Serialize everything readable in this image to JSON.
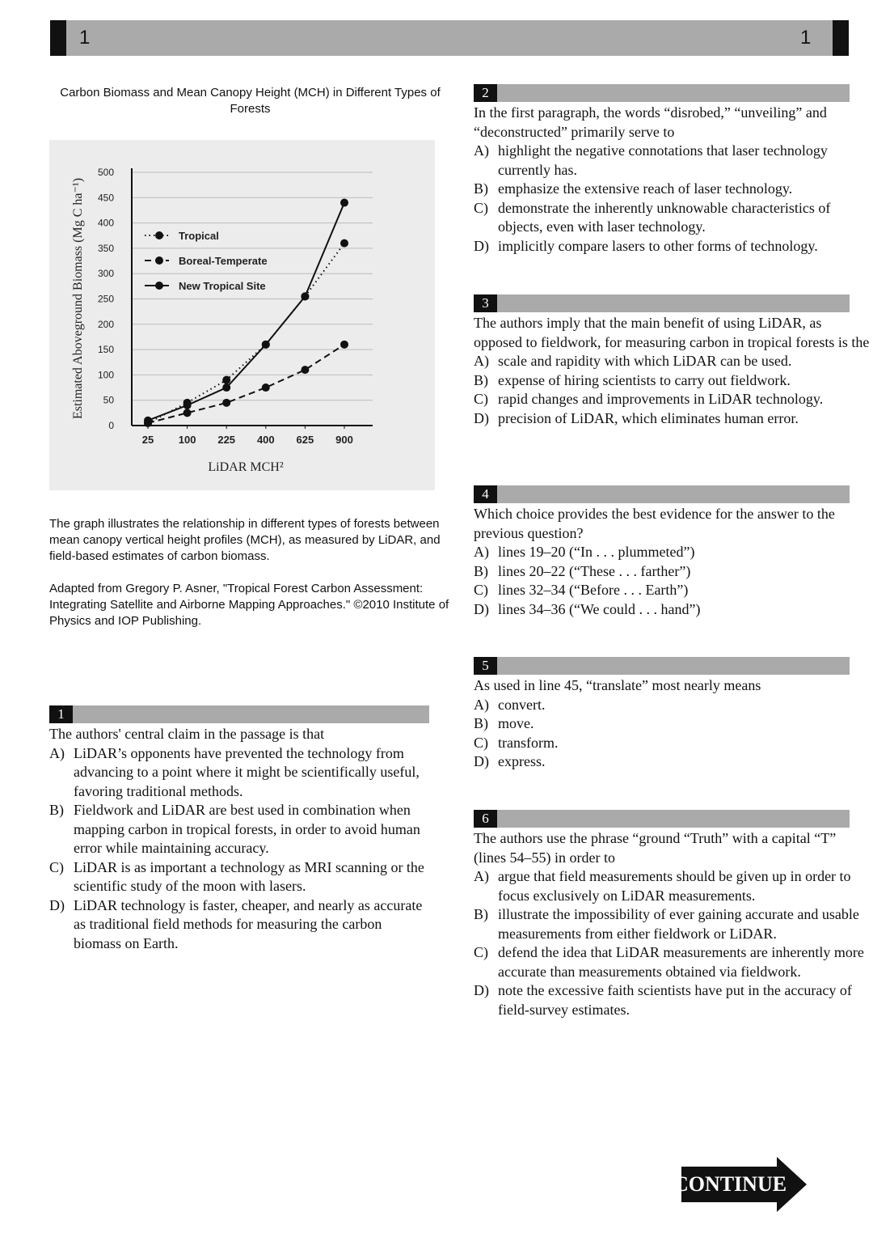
{
  "header": {
    "page_left": "1",
    "page_right": "1"
  },
  "figure": {
    "title": "Carbon Biomass and Mean Canopy Height (MCH) in Different Types of Forests",
    "description": "The graph illustrates the relationship in different types of forests between mean canopy vertical height profiles (MCH), as measured by LiDAR, and field-based estimates of carbon biomass.",
    "source": "Adapted from Gregory P. Asner, \"Tropical Forest Carbon Assessment: Integrating Satellite and Airborne Mapping Approaches.\" ©2010 Institute of Physics and IOP Publishing."
  },
  "chart_data": {
    "type": "line",
    "title": "Carbon Biomass and Mean Canopy Height (MCH) in Different Types of Forests",
    "xlabel": "LiDAR MCH²",
    "ylabel": "Estimated Aboveground Biomass (Mg C ha⁻¹)",
    "categories": [
      "25",
      "100",
      "225",
      "400",
      "625",
      "900"
    ],
    "ylim": [
      0,
      500
    ],
    "yticks": [
      "0",
      "50",
      "100",
      "150",
      "200",
      "250",
      "300",
      "350",
      "400",
      "450",
      "500"
    ],
    "grid": true,
    "legend_position": "top-left",
    "series": [
      {
        "name": "Tropical",
        "style": "dotted",
        "values": [
          5,
          45,
          90,
          160,
          255,
          360
        ]
      },
      {
        "name": "Boreal-Temperate",
        "style": "dashed",
        "values": [
          5,
          25,
          45,
          75,
          110,
          160
        ]
      },
      {
        "name": "New Tropical Site",
        "style": "solid",
        "values": [
          10,
          40,
          75,
          160,
          255,
          440
        ]
      }
    ]
  },
  "questions": [
    {
      "number": "1",
      "stem": "The authors' central claim in the passage is that",
      "options": [
        {
          "letter": "A)",
          "text": "LiDAR’s opponents have prevented the technology from advancing to a point where it might be scientifically useful, favoring traditional methods."
        },
        {
          "letter": "B)",
          "text": "Fieldwork and LiDAR are best used in combination when mapping carbon in tropical forests, in order to avoid human error while maintaining accuracy."
        },
        {
          "letter": "C)",
          "text": "LiDAR is as important a technology as MRI scanning or the scientific study of the moon with lasers."
        },
        {
          "letter": "D)",
          "text": "LiDAR technology is faster, cheaper, and nearly as accurate as traditional field methods for measuring the carbon biomass on Earth."
        }
      ]
    },
    {
      "number": "2",
      "stem": "In the first paragraph, the words “disrobed,” “unveiling” and “deconstructed” primarily serve to",
      "options": [
        {
          "letter": "A)",
          "text": "highlight the negative connotations that laser technology currently has."
        },
        {
          "letter": "B)",
          "text": "emphasize the extensive reach of laser technology."
        },
        {
          "letter": "C)",
          "text": "demonstrate the inherently unknowable characteristics of objects, even with laser technology."
        },
        {
          "letter": "D)",
          "text": "implicitly compare lasers to other forms of technology."
        }
      ]
    },
    {
      "number": "3",
      "stem": "The authors imply that the main benefit of using LiDAR, as opposed to fieldwork, for measuring carbon in tropical forests is the",
      "options": [
        {
          "letter": "A)",
          "text": "scale and rapidity with which LiDAR can be used."
        },
        {
          "letter": "B)",
          "text": "expense of hiring scientists to carry out fieldwork."
        },
        {
          "letter": "C)",
          "text": "rapid changes and improvements in LiDAR technology."
        },
        {
          "letter": "D)",
          "text": "precision of LiDAR, which eliminates human error."
        }
      ]
    },
    {
      "number": "4",
      "stem": "Which choice provides the best evidence for the answer to the previous question?",
      "options": [
        {
          "letter": "A)",
          "text": "lines 19–20 (“In . . . plummeted”)"
        },
        {
          "letter": "B)",
          "text": "lines 20–22 (“These . . . farther”)"
        },
        {
          "letter": "C)",
          "text": "lines 32–34 (“Before . . . Earth”)"
        },
        {
          "letter": "D)",
          "text": "lines 34–36 (“We could . . . hand”)"
        }
      ]
    },
    {
      "number": "5",
      "stem": "As used in line 45, “translate” most nearly means",
      "options": [
        {
          "letter": "A)",
          "text": "convert."
        },
        {
          "letter": "B)",
          "text": "move."
        },
        {
          "letter": "C)",
          "text": "transform."
        },
        {
          "letter": "D)",
          "text": "express."
        }
      ]
    },
    {
      "number": "6",
      "stem": "The authors use the phrase “ground “Truth” with a capital “T” (lines 54–55) in order to",
      "options": [
        {
          "letter": "A)",
          "text": "argue that field measurements should be given up in order to focus exclusively on LiDAR measurements."
        },
        {
          "letter": "B)",
          "text": "illustrate the impossibility of ever gaining accurate and usable measurements from either fieldwork or LiDAR."
        },
        {
          "letter": "C)",
          "text": "defend the idea that LiDAR measurements are inherently more accurate than measurements obtained via fieldwork."
        },
        {
          "letter": "D)",
          "text": "note the excessive faith scientists have put in the accuracy of field-survey estimates."
        }
      ]
    }
  ],
  "continue_label": "CONTINUE"
}
